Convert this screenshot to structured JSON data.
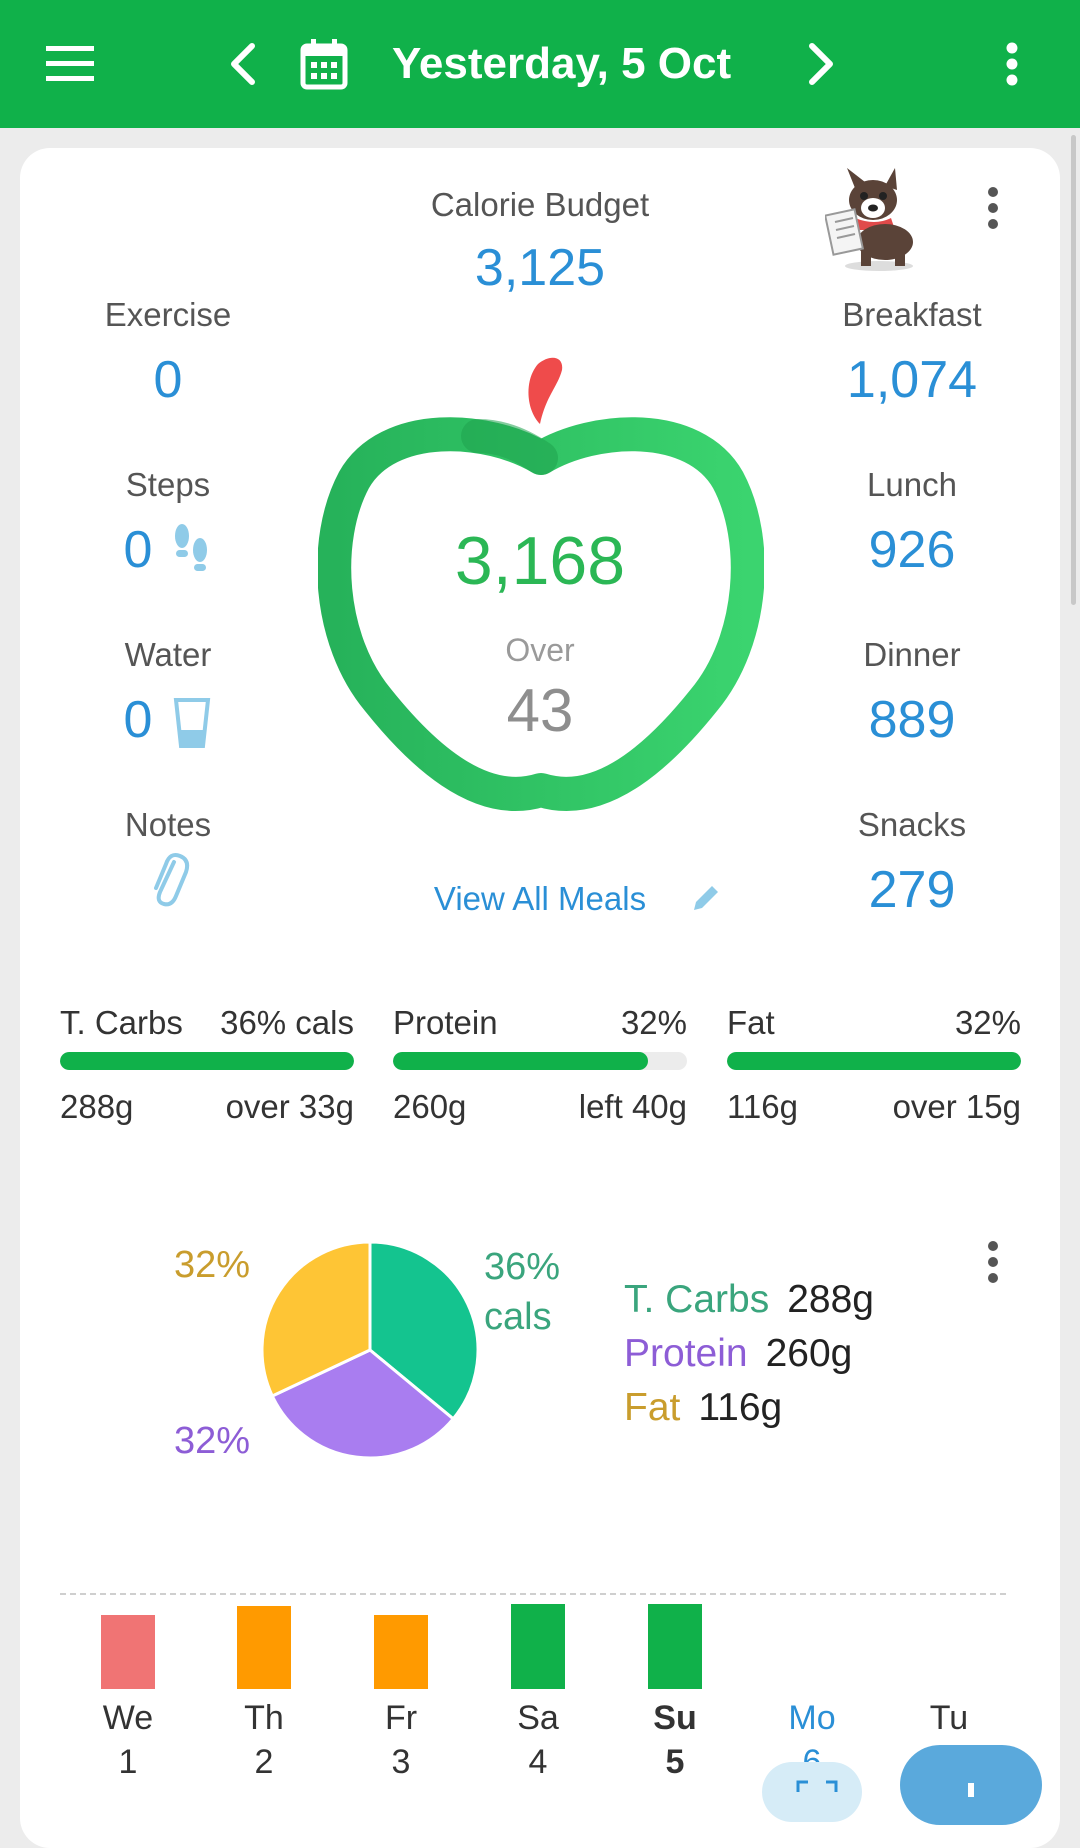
{
  "header": {
    "date_title": "Yesterday, 5 Oct",
    "icons": [
      "menu-icon",
      "chevron-left-icon",
      "calendar-icon",
      "chevron-right-icon",
      "more-vert-icon"
    ]
  },
  "summary": {
    "calorie_budget_label": "Calorie Budget",
    "calorie_budget_value": "3,125",
    "eaten_value": "3,168",
    "status_label": "Over",
    "status_value": "43",
    "view_all_meals": "View All Meals",
    "left": [
      {
        "label": "Exercise",
        "value": "0"
      },
      {
        "label": "Steps",
        "value": "0"
      },
      {
        "label": "Water",
        "value": "0"
      },
      {
        "label": "Notes",
        "value": ""
      }
    ],
    "right": [
      {
        "label": "Breakfast",
        "value": "1,074"
      },
      {
        "label": "Lunch",
        "value": "926"
      },
      {
        "label": "Dinner",
        "value": "889"
      },
      {
        "label": "Snacks",
        "value": "279"
      }
    ]
  },
  "macros": [
    {
      "name": "T. Carbs",
      "pct": "36% cals",
      "grams": "288g",
      "status": "over 33g",
      "progress": 1.0
    },
    {
      "name": "Protein",
      "pct": "32%",
      "grams": "260g",
      "status": "left 40g",
      "progress": 0.867
    },
    {
      "name": "Fat",
      "pct": "32%",
      "grams": "116g",
      "status": "over 15g",
      "progress": 1.0
    }
  ],
  "chart_data": {
    "type": "pie",
    "slices": [
      {
        "name": "T. Carbs",
        "value": 36,
        "label": "36%",
        "label2": "cals",
        "color": "#14c48f"
      },
      {
        "name": "Protein",
        "value": 32,
        "label": "32%",
        "color": "#a97df0"
      },
      {
        "name": "Fat",
        "value": 32,
        "label": "32%",
        "color": "#fec535"
      }
    ],
    "legend": [
      {
        "name": "T. Carbs",
        "grams": "288g",
        "color": "#3aa57d"
      },
      {
        "name": "Protein",
        "grams": "260g",
        "color": "#8d5dd6"
      },
      {
        "name": "Fat",
        "grams": "116g",
        "color": "#c99d2d"
      }
    ]
  },
  "week": {
    "days": [
      {
        "day": "We",
        "num": "1",
        "color": "#f07474",
        "level": 0.75
      },
      {
        "day": "Th",
        "num": "2",
        "color": "#ff9a00",
        "level": 0.85
      },
      {
        "day": "Fr",
        "num": "3",
        "color": "#ff9a00",
        "level": 0.75
      },
      {
        "day": "Sa",
        "num": "4",
        "color": "#10b14a",
        "level": 0.87
      },
      {
        "day": "Su",
        "num": "5",
        "color": "#10b14a",
        "level": 0.87,
        "selected": true
      },
      {
        "day": "Mo",
        "num": "6",
        "color": "",
        "level": 0,
        "today": true
      },
      {
        "day": "Tu",
        "num": "",
        "color": "",
        "level": 0
      }
    ]
  },
  "colors": {
    "brand_green": "#10b14a",
    "value_blue": "#2a8fd6",
    "apple_green": "#2bb755",
    "over_gray": "#8e8e8e"
  }
}
